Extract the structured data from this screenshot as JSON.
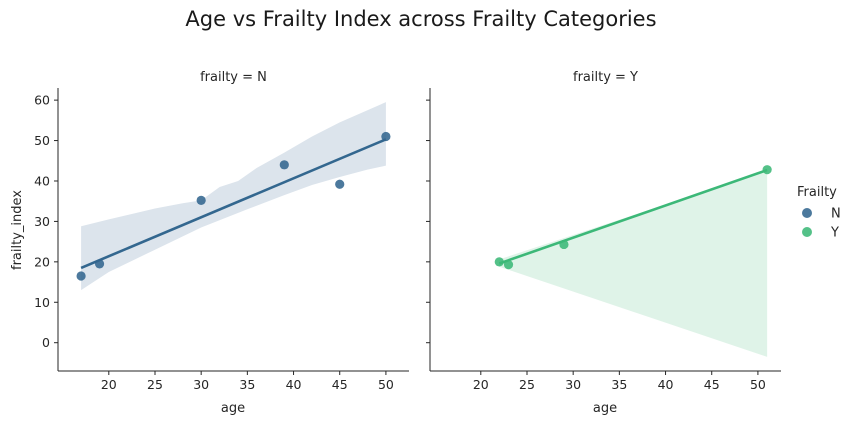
{
  "chart_data": {
    "type": "scatter",
    "title": "Age vs Frailty Index across Frailty Categories",
    "xlabel": "age",
    "ylabel": "frailty_index",
    "xlim": [
      14.5,
      52.5
    ],
    "ylim": [
      -7,
      63
    ],
    "xticks": [
      20,
      25,
      30,
      35,
      40,
      45,
      50
    ],
    "yticks": [
      0,
      10,
      20,
      30,
      40,
      50,
      60
    ],
    "grid": false,
    "legend": {
      "title": "Frailty",
      "placement": "right",
      "entries": [
        {
          "label": "N",
          "color": "#33678f"
        },
        {
          "label": "Y",
          "color": "#3cb878"
        }
      ]
    },
    "panels": [
      {
        "title": "frailty = N",
        "color": "#33678f",
        "band_color": "#dce4ec",
        "points": [
          {
            "x": 17,
            "y": 16.5
          },
          {
            "x": 19,
            "y": 19.5
          },
          {
            "x": 30,
            "y": 35.2
          },
          {
            "x": 39,
            "y": 44
          },
          {
            "x": 45,
            "y": 39.2
          },
          {
            "x": 50,
            "y": 51
          }
        ],
        "fit": [
          {
            "x": 17,
            "y": 18.5
          },
          {
            "x": 50,
            "y": 50.3
          }
        ],
        "band_upper": [
          {
            "x": 17,
            "y": 28.8
          },
          {
            "x": 20,
            "y": 30.5
          },
          {
            "x": 25,
            "y": 33.2
          },
          {
            "x": 28,
            "y": 34.5
          },
          {
            "x": 30,
            "y": 35.2
          },
          {
            "x": 32,
            "y": 38.5
          },
          {
            "x": 34,
            "y": 40
          },
          {
            "x": 36,
            "y": 43.2
          },
          {
            "x": 39,
            "y": 47
          },
          {
            "x": 42,
            "y": 51
          },
          {
            "x": 45,
            "y": 54.5
          },
          {
            "x": 50,
            "y": 59.5
          }
        ],
        "band_lower": [
          {
            "x": 17,
            "y": 13
          },
          {
            "x": 20,
            "y": 17.5
          },
          {
            "x": 25,
            "y": 23
          },
          {
            "x": 30,
            "y": 28.5
          },
          {
            "x": 35,
            "y": 33
          },
          {
            "x": 39,
            "y": 36.5
          },
          {
            "x": 42,
            "y": 39
          },
          {
            "x": 45,
            "y": 41
          },
          {
            "x": 48,
            "y": 42.8
          },
          {
            "x": 50,
            "y": 43.8
          }
        ]
      },
      {
        "title": "frailty = Y",
        "color": "#3cb878",
        "band_color": "#dff3e8",
        "points": [
          {
            "x": 22,
            "y": 20
          },
          {
            "x": 23,
            "y": 19.3
          },
          {
            "x": 29,
            "y": 24.3
          },
          {
            "x": 51,
            "y": 42.8
          }
        ],
        "fit": [
          {
            "x": 22,
            "y": 19.6
          },
          {
            "x": 51,
            "y": 42.7
          }
        ],
        "band_upper": [
          {
            "x": 22,
            "y": 20.6
          },
          {
            "x": 51,
            "y": 42.5
          }
        ],
        "band_lower": [
          {
            "x": 22,
            "y": 18.8
          },
          {
            "x": 51,
            "y": -3.5
          }
        ]
      }
    ]
  }
}
